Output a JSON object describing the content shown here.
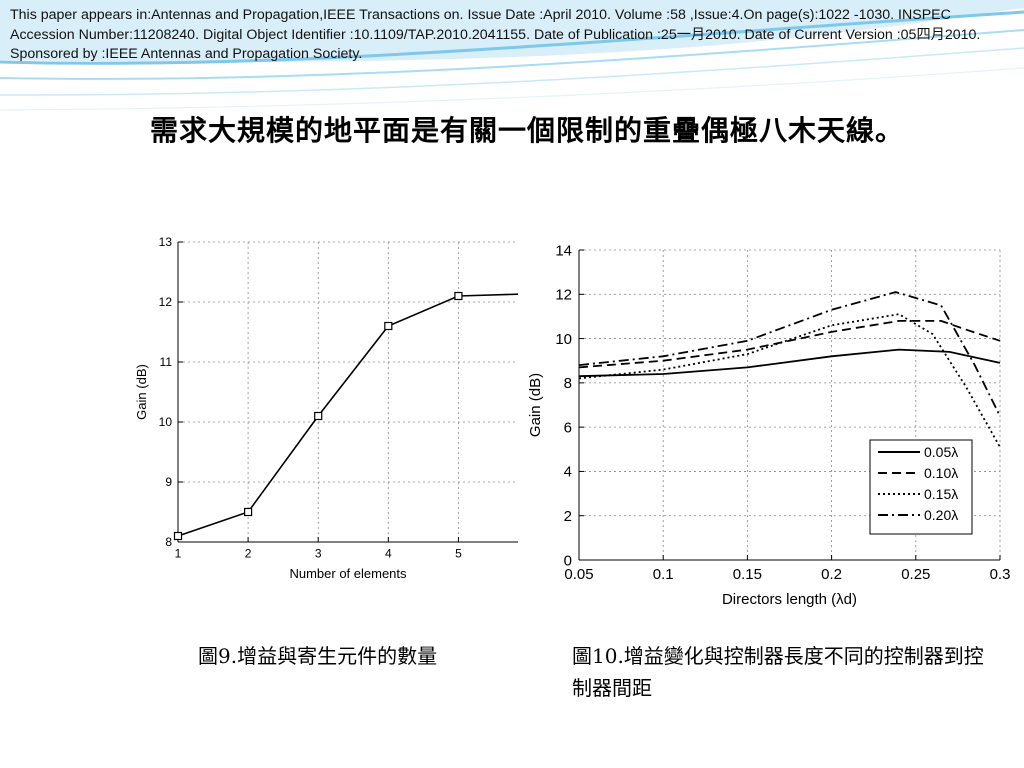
{
  "citation": "This paper appears in:Antennas and Propagation,IEEE Transactions on. Issue Date :April 2010. Volume :58 ,Issue:4.On page(s):1022 -1030. INSPEC Accession Number:11208240. Digital Object Identifier :10.1109/TAP.2010.2041155. Date of Publication :25一月2010. Date of Current Version :05四月2010. Sponsored by :IEEE Antennas and Propagation Society.",
  "title": "需求大規模的地平面是有關一個限制的重疊偶極八木天線。",
  "captions": {
    "fig9": "圖9.增益與寄生元件的數量",
    "fig10": "圖10.增益變化與控制器長度不同的控制器到控制器間距"
  },
  "colors": {
    "background": "#ffffff",
    "wave_accent": "#7ec8ec",
    "line": "#000000"
  },
  "chart_data": [
    {
      "type": "line",
      "xlabel": "Number of elements",
      "ylabel": "Gain (dB)",
      "xlim": [
        1,
        5.85
      ],
      "ylim": [
        8,
        13
      ],
      "grid": true,
      "xticks": [
        "1",
        "2",
        "3",
        "4",
        "5"
      ],
      "yticks": [
        "8",
        "9",
        "10",
        "11",
        "12",
        "13"
      ],
      "series": [
        {
          "x": [
            1,
            2,
            3,
            4,
            5,
            5.85
          ],
          "y": [
            8.1,
            8.5,
            10.1,
            11.6,
            12.1,
            12.13
          ],
          "markers": [
            true,
            true,
            true,
            true,
            true,
            false
          ]
        }
      ]
    },
    {
      "type": "line",
      "xlabel": "Directors length (λd)",
      "ylabel": "Gain (dB)",
      "xlim": [
        0.05,
        0.3
      ],
      "ylim": [
        0,
        14
      ],
      "grid": true,
      "xticks": [
        "0.05",
        "0.1",
        "0.15",
        "0.2",
        "0.25",
        "0.3"
      ],
      "yticks": [
        "0",
        "2",
        "4",
        "6",
        "8",
        "10",
        "12",
        "14"
      ],
      "legend_position": "bottom-right",
      "series": [
        {
          "name": "0.05λ",
          "style": "solid",
          "x": [
            0.05,
            0.1,
            0.15,
            0.2,
            0.24,
            0.27,
            0.3
          ],
          "y": [
            8.3,
            8.4,
            8.7,
            9.2,
            9.5,
            9.4,
            8.9
          ]
        },
        {
          "name": "0.10λ",
          "style": "dashed",
          "x": [
            0.05,
            0.1,
            0.15,
            0.2,
            0.24,
            0.265,
            0.28,
            0.3
          ],
          "y": [
            8.7,
            9.0,
            9.5,
            10.3,
            10.8,
            10.8,
            10.4,
            9.9
          ]
        },
        {
          "name": "0.15λ",
          "style": "dotted",
          "x": [
            0.05,
            0.1,
            0.15,
            0.2,
            0.24,
            0.26,
            0.28,
            0.3
          ],
          "y": [
            8.2,
            8.6,
            9.3,
            10.6,
            11.1,
            10.2,
            7.8,
            5.1
          ]
        },
        {
          "name": "0.20λ",
          "style": "dashdot",
          "x": [
            0.05,
            0.1,
            0.15,
            0.2,
            0.238,
            0.265,
            0.285,
            0.3
          ],
          "y": [
            8.8,
            9.2,
            9.9,
            11.3,
            12.1,
            11.5,
            8.8,
            6.5
          ]
        }
      ]
    }
  ]
}
